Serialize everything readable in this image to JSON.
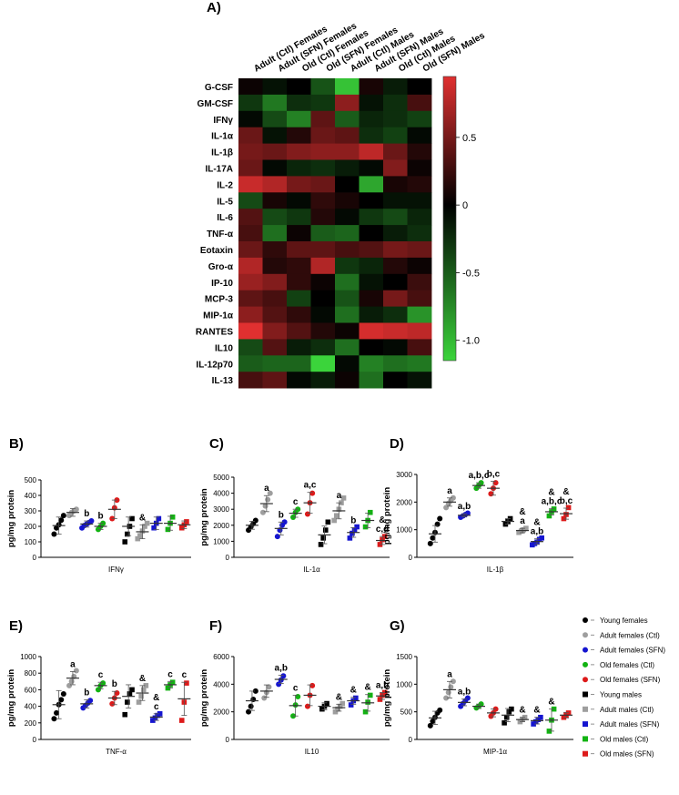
{
  "chart_data": [
    {
      "type": "heatmap",
      "panel_label": "A)",
      "columns": [
        "Adult (Ctl) Females",
        "Adult (SFN) Females",
        "Old (Ctl) Females",
        "Old (SFN) Females",
        "Adult (Ctl) Males",
        "Adult (SFN) Males",
        "Old (Ctl) Males",
        "Old (SFN) Males"
      ],
      "rows": [
        "G-CSF",
        "GM-CSF",
        "IFNγ",
        "IL-1α",
        "IL-1β",
        "IL-17A",
        "IL-2",
        "IL-5",
        "IL-6",
        "TNF-α",
        "Eotaxin",
        "Gro-α",
        "IP-10",
        "MCP-3",
        "MIP-1α",
        "RANTES",
        "IL10",
        "IL-12p70",
        "IL-13"
      ],
      "values": [
        [
          0.05,
          -0.1,
          0.0,
          -0.45,
          -1.05,
          0.1,
          -0.15,
          0.0
        ],
        [
          -0.3,
          -0.65,
          -0.25,
          -0.3,
          0.6,
          -0.1,
          -0.25,
          0.3
        ],
        [
          -0.05,
          -0.4,
          -0.7,
          0.4,
          -0.5,
          -0.2,
          -0.25,
          -0.35
        ],
        [
          0.45,
          -0.1,
          0.15,
          0.45,
          0.4,
          -0.25,
          -0.35,
          -0.05
        ],
        [
          0.5,
          0.45,
          0.55,
          0.6,
          0.6,
          0.8,
          0.45,
          0.15
        ],
        [
          0.45,
          -0.05,
          -0.2,
          -0.25,
          -0.15,
          -0.05,
          0.55,
          0.05
        ],
        [
          0.85,
          0.75,
          0.5,
          0.45,
          0.0,
          -0.9,
          0.1,
          0.15
        ],
        [
          -0.4,
          0.1,
          -0.05,
          0.2,
          0.1,
          0.0,
          -0.1,
          -0.1
        ],
        [
          0.35,
          -0.4,
          -0.3,
          0.15,
          -0.05,
          -0.3,
          -0.4,
          -0.2
        ],
        [
          0.3,
          -0.6,
          0.05,
          -0.5,
          -0.55,
          0.0,
          -0.15,
          -0.25
        ],
        [
          0.45,
          0.2,
          0.4,
          0.4,
          0.3,
          0.35,
          0.5,
          0.45
        ],
        [
          0.75,
          0.15,
          0.2,
          0.75,
          -0.3,
          -0.2,
          0.15,
          0.05
        ],
        [
          0.65,
          0.55,
          0.2,
          0.05,
          -0.6,
          -0.1,
          0.0,
          0.25
        ],
        [
          0.4,
          0.3,
          -0.35,
          0.0,
          -0.45,
          0.1,
          0.5,
          0.3
        ],
        [
          0.6,
          0.35,
          0.2,
          -0.05,
          -0.6,
          -0.15,
          -0.25,
          -0.8
        ],
        [
          0.95,
          0.55,
          0.35,
          0.15,
          0.05,
          0.9,
          0.85,
          0.8
        ],
        [
          -0.4,
          0.35,
          -0.15,
          -0.25,
          -0.6,
          0.0,
          -0.05,
          0.3
        ],
        [
          -0.5,
          -0.55,
          -0.55,
          -1.15,
          -0.05,
          -0.7,
          -0.6,
          -0.65
        ],
        [
          0.3,
          0.4,
          -0.05,
          -0.15,
          0.05,
          -0.6,
          0.0,
          -0.1
        ]
      ],
      "colorbar_ticks": [
        "0.5",
        "0",
        "-0.5",
        "-1.0"
      ],
      "colorbar_tick_values": [
        0.5,
        0,
        -0.5,
        -1.0
      ],
      "vmin": -1.15,
      "vmax": 0.95,
      "colors": {
        "low": "#3bd43b",
        "mid": "#000000",
        "high": "#e03030"
      }
    },
    {
      "type": "scatter",
      "panel_label": "B)",
      "xlabel": "IFNγ",
      "ylabel": "pg/mg protein",
      "ylim": [
        0,
        500
      ],
      "yticks": [
        0,
        100,
        200,
        300,
        400,
        500
      ],
      "groups": [
        {
          "group": 0,
          "points": [
            150,
            190,
            210,
            240,
            270
          ],
          "mean": 205,
          "sd": 55,
          "label": ""
        },
        {
          "group": 1,
          "points": [
            270,
            290,
            300,
            310
          ],
          "mean": 290,
          "sd": 25,
          "label": ""
        },
        {
          "group": 2,
          "points": [
            190,
            205,
            215,
            225,
            235
          ],
          "mean": 215,
          "sd": 20,
          "label": "b"
        },
        {
          "group": 3,
          "points": [
            180,
            200,
            220
          ],
          "mean": 200,
          "sd": 20,
          "label": "b"
        },
        {
          "group": 4,
          "points": [
            250,
            320,
            370
          ],
          "mean": 310,
          "sd": 60,
          "label": ""
        },
        {
          "group": 5,
          "points": [
            100,
            150,
            200,
            250
          ],
          "mean": 200,
          "sd": 60,
          "label": ""
        },
        {
          "group": 6,
          "points": [
            120,
            140,
            170,
            200,
            220
          ],
          "mean": 165,
          "sd": 45,
          "label": "&"
        },
        {
          "group": 7,
          "points": [
            190,
            220,
            250
          ],
          "mean": 220,
          "sd": 40,
          "label": ""
        },
        {
          "group": 8,
          "points": [
            180,
            220,
            260
          ],
          "mean": 220,
          "sd": 45,
          "label": ""
        },
        {
          "group": 9,
          "points": [
            190,
            210,
            230
          ],
          "mean": 210,
          "sd": 25,
          "label": ""
        }
      ]
    },
    {
      "type": "scatter",
      "panel_label": "C)",
      "xlabel": "IL-1α",
      "ylabel": "pg/mg protein",
      "ylim": [
        0,
        5000
      ],
      "yticks": [
        0,
        1000,
        2000,
        3000,
        4000,
        5000
      ],
      "groups": [
        {
          "group": 0,
          "points": [
            1700,
            1900,
            2100,
            2300
          ],
          "mean": 2000,
          "sd": 250,
          "label": ""
        },
        {
          "group": 1,
          "points": [
            2800,
            3200,
            3600,
            4000
          ],
          "mean": 3350,
          "sd": 500,
          "label": "a"
        },
        {
          "group": 2,
          "points": [
            1300,
            1700,
            2000,
            2200
          ],
          "mean": 1800,
          "sd": 400,
          "label": "b"
        },
        {
          "group": 3,
          "points": [
            2500,
            2800,
            3000
          ],
          "mean": 2750,
          "sd": 250,
          "label": "c"
        },
        {
          "group": 4,
          "points": [
            2700,
            3400,
            4000
          ],
          "mean": 3400,
          "sd": 650,
          "label": "a,c"
        },
        {
          "group": 5,
          "points": [
            800,
            1200,
            1700,
            2200
          ],
          "mean": 1400,
          "sd": 550,
          "label": ""
        },
        {
          "group": 6,
          "points": [
            2300,
            2600,
            3000,
            3400,
            3700
          ],
          "mean": 2900,
          "sd": 500,
          "label": "a"
        },
        {
          "group": 7,
          "points": [
            1200,
            1500,
            1700,
            1900
          ],
          "mean": 1550,
          "sd": 300,
          "label": "b"
        },
        {
          "group": 8,
          "points": [
            1900,
            2300,
            2800
          ],
          "mean": 2300,
          "sd": 450,
          "label": ""
        },
        {
          "group": 9,
          "points": [
            800,
            1100,
            1300
          ],
          "mean": 1050,
          "sd": 250,
          "label": "&\nc,d"
        }
      ]
    },
    {
      "type": "scatter",
      "panel_label": "D)",
      "xlabel": "IL-1β",
      "ylabel": "pg/mg protein",
      "ylim": [
        0,
        3000
      ],
      "yticks": [
        0,
        1000,
        2000,
        3000
      ],
      "groups": [
        {
          "group": 0,
          "points": [
            500,
            700,
            900,
            1200,
            1400
          ],
          "mean": 850,
          "sd": 300,
          "label": ""
        },
        {
          "group": 1,
          "points": [
            1800,
            1950,
            2050,
            2150
          ],
          "mean": 2000,
          "sd": 150,
          "label": "a"
        },
        {
          "group": 2,
          "points": [
            1450,
            1500,
            1550,
            1600
          ],
          "mean": 1520,
          "sd": 60,
          "label": "a,b"
        },
        {
          "group": 3,
          "points": [
            2500,
            2600,
            2700
          ],
          "mean": 2600,
          "sd": 100,
          "label": "a,b,c"
        },
        {
          "group": 4,
          "points": [
            2300,
            2500,
            2700
          ],
          "mean": 2500,
          "sd": 250,
          "label": "b,c"
        },
        {
          "group": 5,
          "points": [
            1200,
            1300,
            1400
          ],
          "mean": 1300,
          "sd": 100,
          "label": ""
        },
        {
          "group": 6,
          "points": [
            900,
            950,
            1000,
            1050
          ],
          "mean": 970,
          "sd": 80,
          "label": "&\na"
        },
        {
          "group": 7,
          "points": [
            450,
            500,
            550,
            650,
            700
          ],
          "mean": 570,
          "sd": 100,
          "label": "&\na,b"
        },
        {
          "group": 8,
          "points": [
            1500,
            1650,
            1750
          ],
          "mean": 1650,
          "sd": 120,
          "label": "&\na,b,c"
        },
        {
          "group": 9,
          "points": [
            1400,
            1550,
            1800
          ],
          "mean": 1580,
          "sd": 200,
          "label": "&\nb,c"
        }
      ]
    },
    {
      "type": "scatter",
      "panel_label": "E)",
      "xlabel": "TNF-α",
      "ylabel": "pg/mg protein",
      "ylim": [
        0,
        1000
      ],
      "yticks": [
        0,
        200,
        400,
        600,
        800,
        1000
      ],
      "groups": [
        {
          "group": 0,
          "points": [
            250,
            320,
            420,
            480,
            550
          ],
          "mean": 420,
          "sd": 170,
          "label": ""
        },
        {
          "group": 1,
          "points": [
            650,
            700,
            760,
            830
          ],
          "mean": 740,
          "sd": 80,
          "label": "a"
        },
        {
          "group": 2,
          "points": [
            380,
            410,
            440,
            470
          ],
          "mean": 430,
          "sd": 50,
          "label": "b"
        },
        {
          "group": 3,
          "points": [
            600,
            650,
            680
          ],
          "mean": 650,
          "sd": 40,
          "label": "c"
        },
        {
          "group": 4,
          "points": [
            430,
            500,
            560
          ],
          "mean": 500,
          "sd": 80,
          "label": "b"
        },
        {
          "group": 5,
          "points": [
            300,
            450,
            550,
            600
          ],
          "mean": 520,
          "sd": 140,
          "label": ""
        },
        {
          "group": 6,
          "points": [
            450,
            520,
            600,
            650
          ],
          "mean": 560,
          "sd": 90,
          "label": "&"
        },
        {
          "group": 7,
          "points": [
            230,
            260,
            290,
            310
          ],
          "mean": 270,
          "sd": 40,
          "label": "&\nc"
        },
        {
          "group": 8,
          "points": [
            620,
            660,
            690
          ],
          "mean": 660,
          "sd": 40,
          "label": "c"
        },
        {
          "group": 9,
          "points": [
            230,
            450,
            680
          ],
          "mean": 490,
          "sd": 200,
          "label": "c"
        }
      ]
    },
    {
      "type": "scatter",
      "panel_label": "F)",
      "xlabel": "IL10",
      "ylabel": "pg/mg protein",
      "ylim": [
        0,
        6000
      ],
      "yticks": [
        0,
        2000,
        4000,
        6000
      ],
      "groups": [
        {
          "group": 0,
          "points": [
            2000,
            2400,
            2900,
            3500
          ],
          "mean": 2800,
          "sd": 700,
          "label": ""
        },
        {
          "group": 1,
          "points": [
            3000,
            3400,
            3800
          ],
          "mean": 3500,
          "sd": 450,
          "label": ""
        },
        {
          "group": 2,
          "points": [
            4000,
            4300,
            4600
          ],
          "mean": 4350,
          "sd": 300,
          "label": "a,b"
        },
        {
          "group": 3,
          "points": [
            1700,
            2500,
            3100
          ],
          "mean": 2450,
          "sd": 750,
          "label": "c"
        },
        {
          "group": 4,
          "points": [
            2400,
            3200,
            3900
          ],
          "mean": 3200,
          "sd": 750,
          "label": ""
        },
        {
          "group": 5,
          "points": [
            2200,
            2400,
            2600
          ],
          "mean": 2400,
          "sd": 250,
          "label": ""
        },
        {
          "group": 6,
          "points": [
            2000,
            2200,
            2400,
            2600
          ],
          "mean": 2300,
          "sd": 250,
          "label": "&"
        },
        {
          "group": 7,
          "points": [
            2500,
            2800,
            3000
          ],
          "mean": 2800,
          "sd": 250,
          "label": "&"
        },
        {
          "group": 8,
          "points": [
            2000,
            2700,
            3200
          ],
          "mean": 2650,
          "sd": 600,
          "label": "&"
        },
        {
          "group": 9,
          "points": [
            2900,
            3200,
            3400
          ],
          "mean": 3150,
          "sd": 250,
          "label": "a,b"
        }
      ]
    },
    {
      "type": "scatter",
      "panel_label": "G)",
      "xlabel": "MIP-1α",
      "ylabel": "pg/mg protein",
      "ylim": [
        0,
        1500
      ],
      "yticks": [
        0,
        500,
        1000,
        1500
      ],
      "groups": [
        {
          "group": 0,
          "points": [
            250,
            330,
            400,
            480,
            530
          ],
          "mean": 390,
          "sd": 120,
          "label": ""
        },
        {
          "group": 1,
          "points": [
            750,
            850,
            950,
            1050
          ],
          "mean": 900,
          "sd": 150,
          "label": "a"
        },
        {
          "group": 2,
          "points": [
            600,
            650,
            700,
            750
          ],
          "mean": 670,
          "sd": 60,
          "label": "a,b"
        },
        {
          "group": 3,
          "points": [
            570,
            600,
            640
          ],
          "mean": 600,
          "sd": 40,
          "label": ""
        },
        {
          "group": 4,
          "points": [
            420,
            480,
            550
          ],
          "mean": 480,
          "sd": 70,
          "label": ""
        },
        {
          "group": 5,
          "points": [
            300,
            400,
            500,
            550
          ],
          "mean": 440,
          "sd": 120,
          "label": ""
        },
        {
          "group": 6,
          "points": [
            320,
            360,
            400
          ],
          "mean": 360,
          "sd": 40,
          "label": "&"
        },
        {
          "group": 7,
          "points": [
            280,
            320,
            360,
            400
          ],
          "mean": 340,
          "sd": 60,
          "label": "&"
        },
        {
          "group": 8,
          "points": [
            150,
            350,
            550
          ],
          "mean": 350,
          "sd": 200,
          "label": "&"
        },
        {
          "group": 9,
          "points": [
            400,
            440,
            480
          ],
          "mean": 440,
          "sd": 50,
          "label": ""
        }
      ]
    }
  ],
  "legend": {
    "placement": "right",
    "entries": [
      {
        "label": "Young females",
        "color": "#000000",
        "marker": "circle"
      },
      {
        "label": "Adult females (Ctl)",
        "color": "#9e9e9e",
        "marker": "circle"
      },
      {
        "label": "Adult females (SFN)",
        "color": "#1515d0",
        "marker": "circle"
      },
      {
        "label": "Old females (Ctl)",
        "color": "#12b312",
        "marker": "circle"
      },
      {
        "label": "Old females (SFN)",
        "color": "#dd1a1a",
        "marker": "circle"
      },
      {
        "label": "Young males",
        "color": "#000000",
        "marker": "square"
      },
      {
        "label": "Adult males (Ctl)",
        "color": "#9e9e9e",
        "marker": "square"
      },
      {
        "label": "Adult males (SFN)",
        "color": "#1515d0",
        "marker": "square"
      },
      {
        "label": "Old males (Ctl)",
        "color": "#12b312",
        "marker": "square"
      },
      {
        "label": "Old males (SFN)",
        "color": "#dd1a1a",
        "marker": "square"
      }
    ]
  }
}
